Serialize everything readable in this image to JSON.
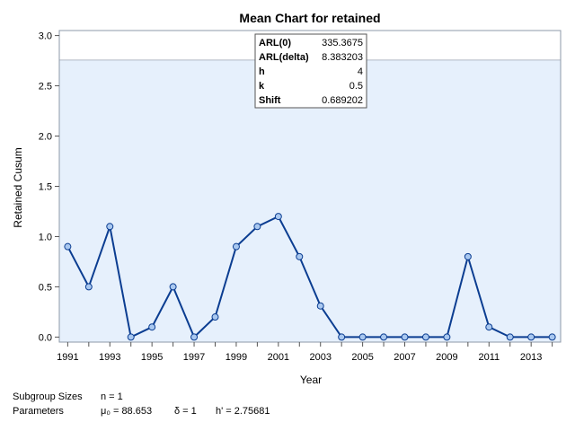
{
  "chart_data": {
    "type": "line",
    "title": "Mean Chart for retained",
    "xlabel": "Year",
    "ylabel": "Retained Cusum",
    "xlim": [
      1990.6,
      2014.4
    ],
    "ylim": [
      -0.05,
      3.05
    ],
    "x_ticks": [
      1991,
      1993,
      1995,
      1997,
      1999,
      2001,
      2003,
      2005,
      2007,
      2009,
      2011,
      2013
    ],
    "y_ticks": [
      0.0,
      0.5,
      1.0,
      1.5,
      2.0,
      2.5,
      3.0
    ],
    "y_tick_labels": [
      "0.0",
      "0.5",
      "1.0",
      "1.5",
      "2.0",
      "2.5",
      "3.0"
    ],
    "control_limit": 2.75681,
    "series": [
      {
        "x": [
          1991,
          1992,
          1993,
          1994,
          1995,
          1996,
          1997,
          1998,
          1999,
          2000,
          2001,
          2002,
          2003,
          2004,
          2005,
          2006,
          2007,
          2008,
          2009,
          2010,
          2011,
          2012,
          2013,
          2014
        ],
        "values": [
          0.9,
          0.5,
          1.1,
          0.0,
          0.1,
          0.5,
          0.0,
          0.2,
          0.9,
          1.1,
          1.2,
          0.8,
          0.31,
          0.0,
          0.0,
          0.0,
          0.0,
          0.0,
          0.0,
          0.8,
          0.1,
          0.0,
          0.0,
          0.0
        ]
      }
    ],
    "inset_table": [
      {
        "label": "ARL(0)",
        "value": "335.3675"
      },
      {
        "label": "ARL(delta)",
        "value": "8.383203"
      },
      {
        "label": "h",
        "value": "4"
      },
      {
        "label": "k",
        "value": "0.5"
      },
      {
        "label": "Shift",
        "value": "0.689202"
      }
    ],
    "colors": {
      "line": "#0b3d91",
      "marker_fill": "#a9c8f0",
      "band_fill": "#e6f0fc",
      "band_edge": "#b0b8c4"
    }
  },
  "footer": {
    "subgroup_label": "Subgroup Sizes",
    "subgroup_value": "n = 1",
    "parameters_label": "Parameters",
    "mu": "μ₀ = 88.653",
    "delta": "δ = 1",
    "h_prime": "h' = 2.75681"
  }
}
